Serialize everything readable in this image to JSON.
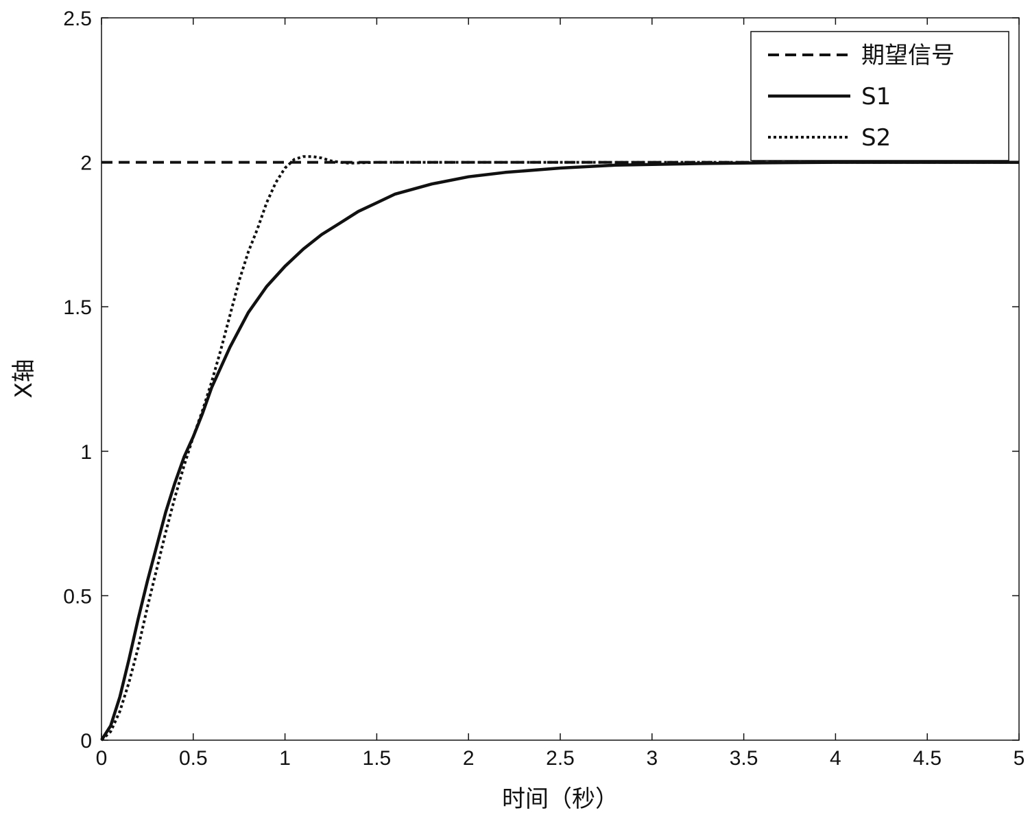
{
  "chart_data": {
    "type": "line",
    "title": "",
    "xlabel": "时间（秒）",
    "ylabel": "X轴",
    "xlim": [
      0,
      5
    ],
    "ylim": [
      0,
      2.5
    ],
    "xticks": [
      0,
      0.5,
      1,
      1.5,
      2,
      2.5,
      3,
      3.5,
      4,
      4.5,
      5
    ],
    "xtick_labels": [
      "0",
      "0.5",
      "1",
      "1.5",
      "2",
      "2.5",
      "3",
      "3.5",
      "4",
      "4.5",
      "5"
    ],
    "yticks": [
      0,
      0.5,
      1,
      1.5,
      2,
      2.5
    ],
    "ytick_labels": [
      "0",
      "0.5",
      "1",
      "1.5",
      "2",
      "2.5"
    ],
    "grid": false,
    "legend_position": "top-right",
    "series": [
      {
        "name": "期望信号",
        "style": "dashed",
        "color": "#111111",
        "x": [
          0,
          5
        ],
        "y": [
          2,
          2
        ]
      },
      {
        "name": "S1",
        "style": "solid",
        "color": "#111111",
        "x": [
          0,
          0.05,
          0.1,
          0.15,
          0.2,
          0.25,
          0.3,
          0.35,
          0.4,
          0.45,
          0.5,
          0.55,
          0.6,
          0.7,
          0.8,
          0.9,
          1.0,
          1.1,
          1.2,
          1.3,
          1.4,
          1.5,
          1.6,
          1.8,
          2.0,
          2.2,
          2.5,
          2.8,
          3.2,
          3.6,
          4.0,
          5.0
        ],
        "y": [
          0,
          0.05,
          0.15,
          0.28,
          0.42,
          0.55,
          0.67,
          0.79,
          0.89,
          0.98,
          1.05,
          1.13,
          1.22,
          1.36,
          1.48,
          1.57,
          1.64,
          1.7,
          1.75,
          1.79,
          1.83,
          1.86,
          1.89,
          1.925,
          1.95,
          1.965,
          1.98,
          1.99,
          1.995,
          1.998,
          2.0,
          2.0
        ]
      },
      {
        "name": "S2",
        "style": "dotted",
        "color": "#111111",
        "x": [
          0,
          0.05,
          0.1,
          0.15,
          0.2,
          0.25,
          0.3,
          0.35,
          0.4,
          0.45,
          0.5,
          0.55,
          0.6,
          0.65,
          0.7,
          0.75,
          0.8,
          0.85,
          0.9,
          0.95,
          1.0,
          1.05,
          1.1,
          1.15,
          1.2,
          1.25,
          1.3,
          1.35,
          1.4,
          1.5,
          1.7,
          2.0,
          5.0
        ],
        "y": [
          0,
          0.03,
          0.1,
          0.2,
          0.32,
          0.46,
          0.59,
          0.72,
          0.84,
          0.95,
          1.05,
          1.14,
          1.24,
          1.35,
          1.47,
          1.59,
          1.69,
          1.77,
          1.86,
          1.93,
          1.98,
          2.01,
          2.02,
          2.02,
          2.015,
          2.005,
          2.0,
          1.997,
          1.998,
          2.0,
          2.0,
          2.0,
          2.0
        ]
      }
    ]
  }
}
